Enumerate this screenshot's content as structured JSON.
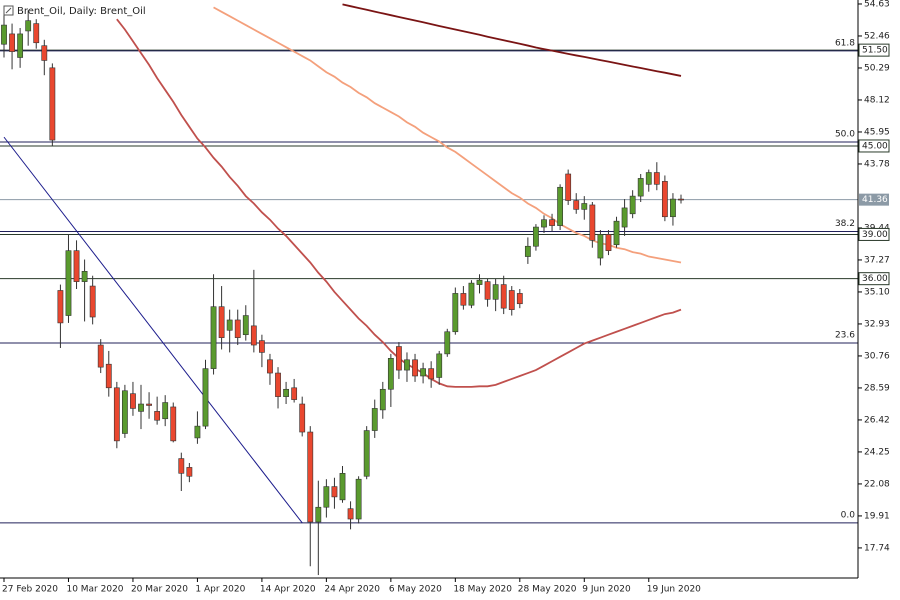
{
  "chart_data": {
    "type": "candlestick",
    "title": "Brent_Oil, Daily:  Brent_Oil",
    "categories": [
      "27 Feb 2020",
      null,
      null,
      null,
      null,
      null,
      null,
      null,
      "10 Mar 2020",
      null,
      null,
      null,
      null,
      null,
      null,
      null,
      "20 Mar 2020",
      null,
      null,
      null,
      null,
      null,
      null,
      null,
      "1 Apr 2020",
      null,
      null,
      null,
      null,
      null,
      null,
      null,
      "14 Apr 2020",
      null,
      null,
      null,
      null,
      null,
      null,
      null,
      "24 Apr 2020",
      null,
      null,
      null,
      null,
      null,
      null,
      null,
      "6 May 2020",
      null,
      null,
      null,
      null,
      null,
      null,
      null,
      "18 May 2020",
      null,
      null,
      null,
      null,
      null,
      null,
      null,
      "28 May 2020",
      null,
      null,
      null,
      null,
      null,
      null,
      null,
      "9 Jun 2020",
      null,
      null,
      null,
      null,
      null,
      null,
      null,
      "19 Jun 2020",
      null,
      null,
      null,
      null
    ],
    "open": [
      51.9,
      52.6,
      51.0,
      52.8,
      53.3,
      51.8,
      50.3,
      35.2,
      33.5,
      37.9,
      35.8,
      35.5,
      31.5,
      30.2,
      28.6,
      25.5,
      28.2,
      27.0,
      27.5,
      27.0,
      26.5,
      27.3,
      23.8,
      23.2,
      25.2,
      26.0,
      29.9,
      34.1,
      32.5,
      33.2,
      32.2,
      32.8,
      31.8,
      30.5,
      29.6,
      28.0,
      28.6,
      27.5,
      25.6,
      19.5,
      20.5,
      21.9,
      21.0,
      20.4,
      19.7,
      22.6,
      25.7,
      27.1,
      28.5,
      31.4,
      29.8,
      30.5,
      29.4,
      29.9,
      29.3,
      30.9,
      32.4,
      35.0,
      34.2,
      35.6,
      35.8,
      34.6,
      35.6,
      35.2,
      35.0,
      37.5,
      38.2,
      39.5,
      40.0,
      39.6,
      43.1,
      41.3,
      40.7,
      41.0,
      37.4,
      39.0,
      38.3,
      39.5,
      40.4,
      41.6,
      42.4,
      43.2,
      42.6,
      40.2,
      41.4
    ],
    "high": [
      54.3,
      53.3,
      53.0,
      54.2,
      53.6,
      52.2,
      50.6,
      35.6,
      39.0,
      38.6,
      37.3,
      36.2,
      31.9,
      31.1,
      29.0,
      28.8,
      29.0,
      28.8,
      28.3,
      28.0,
      28.1,
      27.6,
      24.2,
      23.5,
      27.0,
      30.5,
      36.3,
      35.5,
      33.9,
      33.9,
      34.2,
      36.6,
      32.2,
      30.9,
      30.0,
      29.0,
      29.2,
      28.0,
      26.0,
      22.3,
      22.4,
      22.5,
      23.3,
      20.9,
      22.6,
      26.0,
      27.8,
      29.0,
      30.9,
      31.7,
      31.0,
      30.9,
      30.3,
      30.4,
      31.1,
      32.6,
      35.4,
      35.5,
      35.9,
      36.3,
      36.0,
      36.0,
      36.2,
      35.5,
      35.3,
      38.8,
      39.7,
      40.3,
      40.4,
      42.4,
      43.4,
      41.8,
      41.6,
      41.2,
      39.3,
      39.3,
      40.2,
      41.4,
      42.0,
      43.1,
      43.4,
      43.9,
      43.0,
      41.8,
      41.7
    ],
    "low": [
      51.0,
      50.2,
      50.3,
      51.8,
      51.6,
      49.8,
      45.0,
      31.3,
      33.0,
      35.3,
      33.1,
      32.9,
      29.6,
      28.0,
      24.5,
      25.2,
      26.7,
      25.8,
      26.5,
      26.1,
      26.0,
      24.9,
      21.6,
      22.2,
      24.8,
      25.8,
      29.5,
      31.2,
      31.0,
      31.5,
      31.8,
      31.0,
      30.0,
      28.8,
      27.2,
      27.5,
      27.6,
      25.3,
      16.5,
      15.9,
      19.8,
      20.4,
      20.8,
      19.0,
      19.4,
      22.4,
      25.2,
      26.5,
      27.3,
      29.2,
      29.0,
      29.0,
      28.9,
      28.6,
      28.8,
      30.7,
      32.2,
      33.9,
      34.0,
      35.0,
      34.1,
      33.8,
      33.6,
      33.5,
      34.0,
      37.0,
      37.9,
      39.1,
      39.2,
      39.3,
      41.0,
      40.4,
      40.0,
      38.1,
      36.9,
      37.6,
      38.1,
      38.9,
      40.1,
      41.2,
      41.9,
      42.0,
      39.9,
      39.6,
      41.1
    ],
    "close": [
      53.2,
      51.4,
      52.6,
      53.5,
      52.0,
      50.8,
      45.4,
      33.0,
      37.9,
      35.8,
      36.5,
      33.4,
      30.0,
      28.6,
      25.0,
      28.4,
      27.2,
      27.5,
      27.4,
      26.4,
      27.6,
      25.0,
      22.8,
      22.6,
      26.0,
      29.9,
      34.1,
      32.0,
      33.2,
      32.0,
      33.5,
      31.5,
      31.0,
      29.6,
      28.0,
      28.5,
      27.8,
      25.6,
      19.5,
      20.5,
      21.9,
      21.2,
      22.8,
      19.7,
      22.4,
      25.7,
      27.2,
      28.5,
      30.6,
      29.8,
      30.5,
      29.4,
      29.9,
      29.2,
      30.9,
      32.4,
      35.0,
      34.2,
      35.7,
      35.9,
      34.6,
      35.6,
      34.0,
      33.9,
      34.3,
      38.2,
      39.5,
      40.0,
      39.6,
      42.2,
      41.3,
      40.7,
      41.1,
      38.6,
      39.0,
      37.9,
      39.9,
      40.8,
      41.6,
      42.8,
      43.2,
      42.4,
      40.2,
      41.4,
      41.36
    ],
    "up_color": "#5a9a2e",
    "down_color": "#e9472f",
    "ma_lines": [
      {
        "color": "#c0504d",
        "values": [
          null,
          null,
          null,
          null,
          null,
          null,
          null,
          null,
          null,
          null,
          null,
          null,
          null,
          null,
          53.6,
          52.9,
          52.1,
          51.3,
          50.5,
          49.6,
          48.8,
          48.0,
          47.1,
          46.3,
          45.5,
          44.9,
          44.2,
          43.6,
          42.9,
          42.3,
          41.6,
          41.1,
          40.5,
          40.0,
          39.4,
          38.9,
          38.3,
          37.7,
          37.1,
          36.4,
          35.8,
          35.1,
          34.5,
          33.9,
          33.3,
          32.8,
          32.2,
          31.7,
          31.1,
          30.6,
          30.2,
          29.9,
          29.6,
          29.2,
          28.9,
          28.7,
          28.66,
          28.66,
          28.66,
          28.7,
          28.7,
          28.8,
          29.0,
          29.2,
          29.4,
          29.6,
          29.8,
          30.1,
          30.4,
          30.7,
          31.0,
          31.3,
          31.6,
          31.8,
          32.0,
          32.2,
          32.4,
          32.6,
          32.8,
          33.0,
          33.2,
          33.4,
          33.6,
          33.7,
          33.9
        ]
      },
      {
        "color": "#f4a07c",
        "values": [
          null,
          null,
          null,
          null,
          null,
          null,
          null,
          null,
          null,
          null,
          null,
          null,
          null,
          null,
          null,
          null,
          null,
          null,
          null,
          null,
          null,
          null,
          null,
          null,
          null,
          null,
          54.4,
          54.1,
          53.8,
          53.5,
          53.2,
          52.9,
          52.6,
          52.3,
          52.0,
          51.7,
          51.4,
          51.1,
          50.8,
          50.4,
          50.0,
          49.7,
          49.3,
          49.0,
          48.6,
          48.3,
          47.9,
          47.6,
          47.3,
          47.0,
          46.6,
          46.3,
          45.9,
          45.6,
          45.3,
          44.9,
          44.6,
          44.2,
          43.8,
          43.4,
          43.0,
          42.6,
          42.2,
          41.8,
          41.5,
          41.1,
          40.8,
          40.4,
          40.1,
          39.7,
          39.4,
          39.1,
          38.9,
          38.6,
          38.4,
          38.3,
          38.1,
          38.0,
          37.8,
          37.7,
          37.5,
          37.4,
          37.3,
          37.2,
          37.1
        ]
      },
      {
        "color": "#7a1414",
        "values": [
          null,
          null,
          null,
          null,
          null,
          null,
          null,
          null,
          null,
          null,
          null,
          null,
          null,
          null,
          null,
          null,
          null,
          null,
          null,
          null,
          null,
          null,
          null,
          null,
          null,
          null,
          null,
          null,
          null,
          null,
          null,
          null,
          null,
          null,
          null,
          null,
          null,
          null,
          null,
          null,
          null,
          null,
          54.6,
          54.48,
          54.36,
          54.24,
          54.11,
          53.99,
          53.87,
          53.75,
          53.63,
          53.51,
          53.39,
          53.26,
          53.14,
          53.02,
          52.9,
          52.78,
          52.66,
          52.54,
          52.41,
          52.29,
          52.17,
          52.05,
          51.93,
          51.81,
          51.68,
          51.57,
          51.47,
          51.36,
          51.25,
          51.14,
          51.04,
          50.93,
          50.82,
          50.72,
          50.61,
          50.5,
          50.39,
          50.29,
          50.18,
          50.07,
          49.97,
          49.86,
          49.75
        ]
      }
    ],
    "trend_line": {
      "color": "#1c1c8c",
      "start_bar": 0,
      "end_bar": 37,
      "start": 45.6,
      "end": 19.44
    },
    "levels": [
      51.5,
      45,
      39,
      36
    ],
    "level_labels": [
      "51.50",
      "45.00",
      "39.00",
      "36.00"
    ],
    "level_color": "#2a3a2a",
    "fib_levels": [
      {
        "label": "61.8",
        "price": 51.45
      },
      {
        "label": "50.0",
        "price": 45.27
      },
      {
        "label": "38.2",
        "price": 39.2
      },
      {
        "label": "23.6",
        "price": 31.64
      },
      {
        "label": "0.0",
        "price": 19.44
      }
    ],
    "fib_color": "#20205a",
    "current_price": 41.36,
    "current_color": "#8c9aa6",
    "ylim": [
      15.7,
      54.9
    ],
    "yticks": [
      54.63,
      52.46,
      50.29,
      48.12,
      45.95,
      43.78,
      39.44,
      37.27,
      {
        "value": 35.1,
        "label": "35.10"
      },
      32.93,
      30.76,
      28.59,
      26.42,
      24.25,
      22.08,
      19.91,
      17.74
    ]
  }
}
